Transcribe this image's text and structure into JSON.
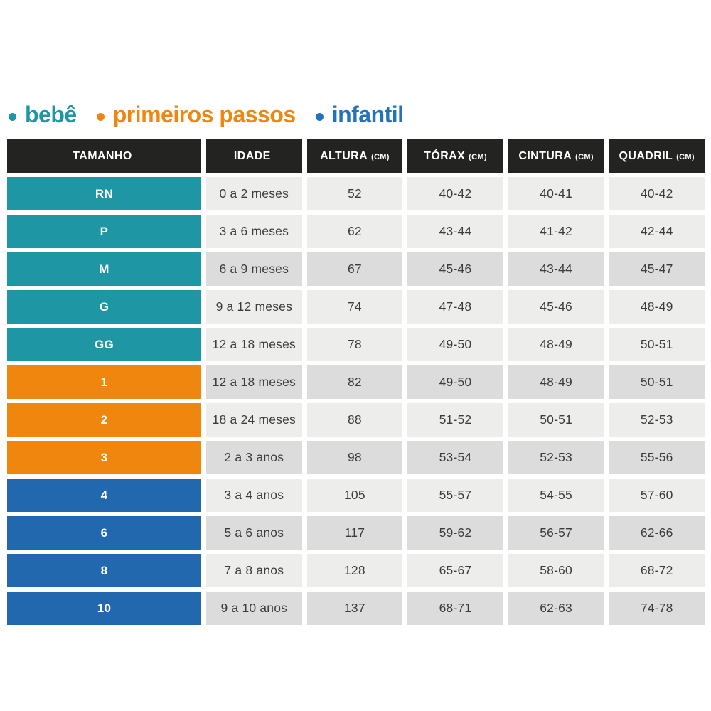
{
  "colors": {
    "header_bg": "#232321",
    "header_text": "#ffffff",
    "cell_light": "#ededec",
    "cell_dark": "#dbdcdb",
    "cell_text": "#3c3c3b",
    "groups": {
      "bebe": "#1e96a4",
      "primeiros_passos": "#f0860e",
      "infantil": "#2268ae"
    }
  },
  "legend": {
    "items": [
      {
        "label": "bebê",
        "color": "#1e96a5"
      },
      {
        "label": "primeiros passos",
        "color": "#f0860e"
      },
      {
        "label": "infantil",
        "color": "#2272bc"
      }
    ]
  },
  "table": {
    "headers": [
      {
        "label": "TAMANHO",
        "unit": ""
      },
      {
        "label": "IDADE",
        "unit": ""
      },
      {
        "label": "ALTURA",
        "unit": "(CM)"
      },
      {
        "label": "TÓRAX",
        "unit": "(CM)"
      },
      {
        "label": "CINTURA",
        "unit": "(CM)"
      },
      {
        "label": "QUADRIL",
        "unit": "(CM)"
      }
    ],
    "rows": [
      {
        "size": "RN",
        "group": "bebe",
        "shade": "light",
        "idade": "0 a 2 meses",
        "altura": "52",
        "torax": "40-42",
        "cintura": "40-41",
        "quadril": "40-42"
      },
      {
        "size": "P",
        "group": "bebe",
        "shade": "light",
        "idade": "3 a 6 meses",
        "altura": "62",
        "torax": "43-44",
        "cintura": "41-42",
        "quadril": "42-44"
      },
      {
        "size": "M",
        "group": "bebe",
        "shade": "dark",
        "idade": "6 a 9 meses",
        "altura": "67",
        "torax": "45-46",
        "cintura": "43-44",
        "quadril": "45-47"
      },
      {
        "size": "G",
        "group": "bebe",
        "shade": "light",
        "idade": "9 a 12 meses",
        "altura": "74",
        "torax": "47-48",
        "cintura": "45-46",
        "quadril": "48-49"
      },
      {
        "size": "GG",
        "group": "bebe",
        "shade": "light",
        "idade": "12 a 18 meses",
        "altura": "78",
        "torax": "49-50",
        "cintura": "48-49",
        "quadril": "50-51"
      },
      {
        "size": "1",
        "group": "primeiros_passos",
        "shade": "dark",
        "idade": "12 a 18 meses",
        "altura": "82",
        "torax": "49-50",
        "cintura": "48-49",
        "quadril": "50-51"
      },
      {
        "size": "2",
        "group": "primeiros_passos",
        "shade": "light",
        "idade": "18 a 24 meses",
        "altura": "88",
        "torax": "51-52",
        "cintura": "50-51",
        "quadril": "52-53"
      },
      {
        "size": "3",
        "group": "primeiros_passos",
        "shade": "dark",
        "idade": "2 a 3 anos",
        "altura": "98",
        "torax": "53-54",
        "cintura": "52-53",
        "quadril": "55-56"
      },
      {
        "size": "4",
        "group": "infantil",
        "shade": "light",
        "idade": "3 a 4 anos",
        "altura": "105",
        "torax": "55-57",
        "cintura": "54-55",
        "quadril": "57-60"
      },
      {
        "size": "6",
        "group": "infantil",
        "shade": "dark",
        "idade": "5 a 6 anos",
        "altura": "117",
        "torax": "59-62",
        "cintura": "56-57",
        "quadril": "62-66"
      },
      {
        "size": "8",
        "group": "infantil",
        "shade": "light",
        "idade": "7 a 8 anos",
        "altura": "128",
        "torax": "65-67",
        "cintura": "58-60",
        "quadril": "68-72"
      },
      {
        "size": "10",
        "group": "infantil",
        "shade": "dark",
        "idade": "9 a 10 anos",
        "altura": "137",
        "torax": "68-71",
        "cintura": "62-63",
        "quadril": "74-78"
      }
    ]
  },
  "chart_data": {
    "type": "table",
    "title": "",
    "legend": [
      "bebê",
      "primeiros passos",
      "infantil"
    ],
    "columns": [
      "TAMANHO",
      "IDADE",
      "ALTURA (CM)",
      "TÓRAX (CM)",
      "CINTURA (CM)",
      "QUADRIL (CM)"
    ],
    "rows": [
      [
        "RN",
        "0 a 2 meses",
        "52",
        "40-42",
        "40-41",
        "40-42"
      ],
      [
        "P",
        "3 a 6 meses",
        "62",
        "43-44",
        "41-42",
        "42-44"
      ],
      [
        "M",
        "6 a 9 meses",
        "67",
        "45-46",
        "43-44",
        "45-47"
      ],
      [
        "G",
        "9 a 12 meses",
        "74",
        "47-48",
        "45-46",
        "48-49"
      ],
      [
        "GG",
        "12 a 18 meses",
        "78",
        "49-50",
        "48-49",
        "50-51"
      ],
      [
        "1",
        "12 a 18 meses",
        "82",
        "49-50",
        "48-49",
        "50-51"
      ],
      [
        "2",
        "18 a 24 meses",
        "88",
        "51-52",
        "50-51",
        "52-53"
      ],
      [
        "3",
        "2 a 3 anos",
        "98",
        "53-54",
        "52-53",
        "55-56"
      ],
      [
        "4",
        "3 a 4 anos",
        "105",
        "55-57",
        "54-55",
        "57-60"
      ],
      [
        "6",
        "5 a 6 anos",
        "117",
        "59-62",
        "56-57",
        "62-66"
      ],
      [
        "8",
        "7 a 8 anos",
        "128",
        "65-67",
        "58-60",
        "68-72"
      ],
      [
        "10",
        "9 a 10 anos",
        "137",
        "68-71",
        "62-63",
        "74-78"
      ]
    ],
    "row_groups": [
      "bebê",
      "bebê",
      "bebê",
      "bebê",
      "bebê",
      "primeiros passos",
      "primeiros passos",
      "primeiros passos",
      "infantil",
      "infantil",
      "infantil",
      "infantil"
    ]
  }
}
